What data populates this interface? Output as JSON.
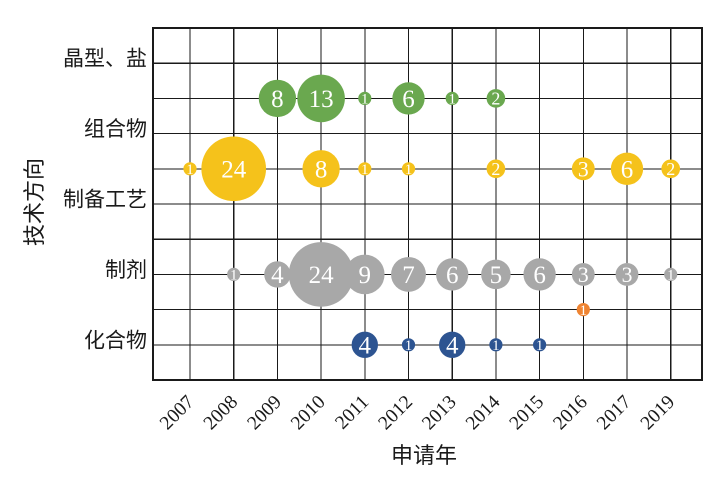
{
  "figure": {
    "background": "#ffffff",
    "grid_color": "#1a1a1a",
    "text_color": "#1a1a1a"
  },
  "axes": {
    "x_title": "申请年",
    "y_title": "技术方向",
    "x_ticks": [
      "2007",
      "2008",
      "2009",
      "2010",
      "2011",
      "2012",
      "2013",
      "2014",
      "2015",
      "2016",
      "2017",
      "2019"
    ],
    "y_ticks": [
      "晶型、盐",
      "组合物",
      "制备工艺",
      "制剂",
      "化合物"
    ]
  },
  "chart_data": {
    "type": "scatter",
    "subtype": "bubble",
    "title": "",
    "xlabel": "申请年",
    "ylabel": "技术方向",
    "grid": true,
    "legend": "none",
    "x_categories": [
      "2007",
      "2008",
      "2009",
      "2010",
      "2011",
      "2012",
      "2013",
      "2014",
      "2015",
      "2016",
      "2017",
      "2019"
    ],
    "y_categories_top_to_bottom": [
      "晶型、盐",
      "组合物",
      "制备工艺",
      "制剂",
      "化合物"
    ],
    "y_tick_gridline_rows": [
      1,
      3,
      5,
      7,
      9
    ],
    "data_labels": {
      "show": true,
      "color": "#ffffff"
    },
    "series": [
      {
        "name": "green",
        "color_hex": "#6AA84F",
        "row_gridline": 2,
        "points": [
          {
            "x": "2009",
            "value": 8
          },
          {
            "x": "2010",
            "value": 13
          },
          {
            "x": "2011",
            "value": 1
          },
          {
            "x": "2012",
            "value": 6
          },
          {
            "x": "2013",
            "value": 1
          },
          {
            "x": "2014",
            "value": 2
          }
        ]
      },
      {
        "name": "yellow",
        "color_hex": "#F5C21B",
        "row_gridline": 4,
        "points": [
          {
            "x": "2007",
            "value": 1
          },
          {
            "x": "2008",
            "value": 24
          },
          {
            "x": "2010",
            "value": 8
          },
          {
            "x": "2011",
            "value": 1
          },
          {
            "x": "2012",
            "value": 1
          },
          {
            "x": "2014",
            "value": 2
          },
          {
            "x": "2016",
            "value": 3
          },
          {
            "x": "2017",
            "value": 6
          },
          {
            "x": "2019",
            "value": 2
          }
        ]
      },
      {
        "name": "gray",
        "color_hex": "#A8A8A8",
        "row_gridline": 7,
        "points": [
          {
            "x": "2008",
            "value": 1
          },
          {
            "x": "2009",
            "value": 4
          },
          {
            "x": "2010",
            "value": 24
          },
          {
            "x": "2011",
            "value": 9
          },
          {
            "x": "2012",
            "value": 7
          },
          {
            "x": "2013",
            "value": 6
          },
          {
            "x": "2014",
            "value": 5
          },
          {
            "x": "2015",
            "value": 6
          },
          {
            "x": "2016",
            "value": 3
          },
          {
            "x": "2017",
            "value": 3
          },
          {
            "x": "2019",
            "value": 1
          }
        ]
      },
      {
        "name": "orange",
        "color_hex": "#EF8432",
        "row_gridline": 8,
        "points": [
          {
            "x": "2016",
            "value": 1
          }
        ]
      },
      {
        "name": "blue",
        "color_hex": "#2D5491",
        "row_gridline": 9,
        "points": [
          {
            "x": "2011",
            "value": 4
          },
          {
            "x": "2012",
            "value": 1
          },
          {
            "x": "2013",
            "value": 4
          },
          {
            "x": "2014",
            "value": 1
          },
          {
            "x": "2015",
            "value": 1
          }
        ]
      }
    ]
  }
}
